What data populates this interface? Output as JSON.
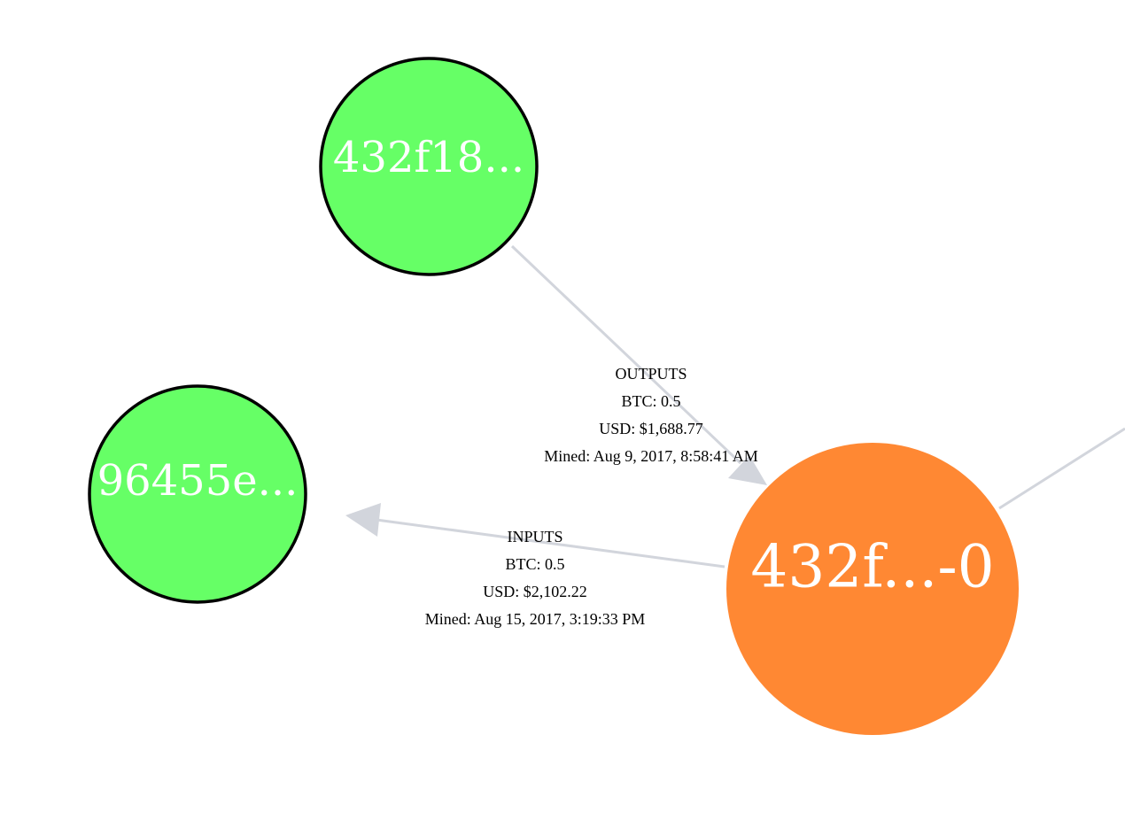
{
  "graph": {
    "nodes": [
      {
        "id": "n1",
        "label": "432f18...",
        "color": "#66ff66",
        "kind": "address"
      },
      {
        "id": "n2",
        "label": "96455e...",
        "color": "#66ff66",
        "kind": "address"
      },
      {
        "id": "n3",
        "label": "432f...-0",
        "color": "#ff8833",
        "kind": "transaction-output"
      }
    ],
    "edges": [
      {
        "id": "e1",
        "from": "n1",
        "to": "n3",
        "type": "OUTPUTS",
        "btc": "BTC: 0.5",
        "usd": "USD: $1,688.77",
        "mined": "Mined: Aug 9, 2017, 8:58:41 AM"
      },
      {
        "id": "e2",
        "from": "n3",
        "to": "n2",
        "type": "INPUTS",
        "btc": "BTC: 0.5",
        "usd": "USD: $2,102.22",
        "mined": "Mined: Aug 15, 2017, 3:19:33 PM"
      }
    ],
    "edge_color": "#d2d5dc",
    "node_border_color": "#000000"
  }
}
